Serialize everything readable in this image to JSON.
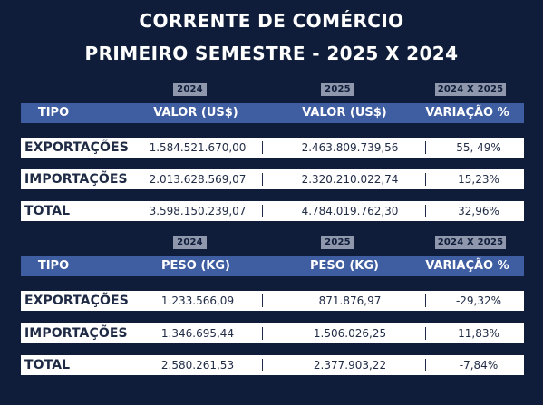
{
  "title": {
    "line1": "CORRENTE DE COMÉRCIO",
    "line2": "PRIMEIRO SEMESTRE - 2025 X 2024"
  },
  "valor_table": {
    "year_labels": [
      "2024",
      "2025",
      "2024 X 2025"
    ],
    "headers": [
      "TIPO",
      "VALOR (US$)",
      "VALOR (US$)",
      "VARIAÇÃO %"
    ],
    "rows": [
      {
        "label": "EXPORTAÇÕES",
        "v2024": "1.584.521.670,00",
        "v2025": "2.463.809.739,56",
        "variacao": "55, 49%"
      },
      {
        "label": "IMPORTAÇÕES",
        "v2024": "2.013.628.569,07",
        "v2025": "2.320.210.022,74",
        "variacao": "15,23%"
      },
      {
        "label": "TOTAL",
        "v2024": "3.598.150.239,07",
        "v2025": "4.784.019.762,30",
        "variacao": "32,96%"
      }
    ]
  },
  "peso_table": {
    "year_labels": [
      "2024",
      "2025",
      "2024 X 2025"
    ],
    "headers": [
      "TIPO",
      "PESO (KG)",
      "PESO (KG)",
      "VARIAÇÃO %"
    ],
    "rows": [
      {
        "label": "EXPORTAÇÕES",
        "v2024": "1.233.566,09",
        "v2025": "871.876,97",
        "variacao": "-29,32%"
      },
      {
        "label": "IMPORTAÇÕES",
        "v2024": "1.346.695,44",
        "v2025": "1.506.026,25",
        "variacao": "11,83%"
      },
      {
        "label": "TOTAL",
        "v2024": "2.580.261,53",
        "v2025": "2.377.903,22",
        "variacao": "-7,84%"
      }
    ]
  },
  "colors": {
    "background": "#0f1d3a",
    "header_bar": "#3f5ea1",
    "year_tag": "#8e97ab",
    "row_background": "#ffffff",
    "text_dark": "#1f2a44"
  }
}
